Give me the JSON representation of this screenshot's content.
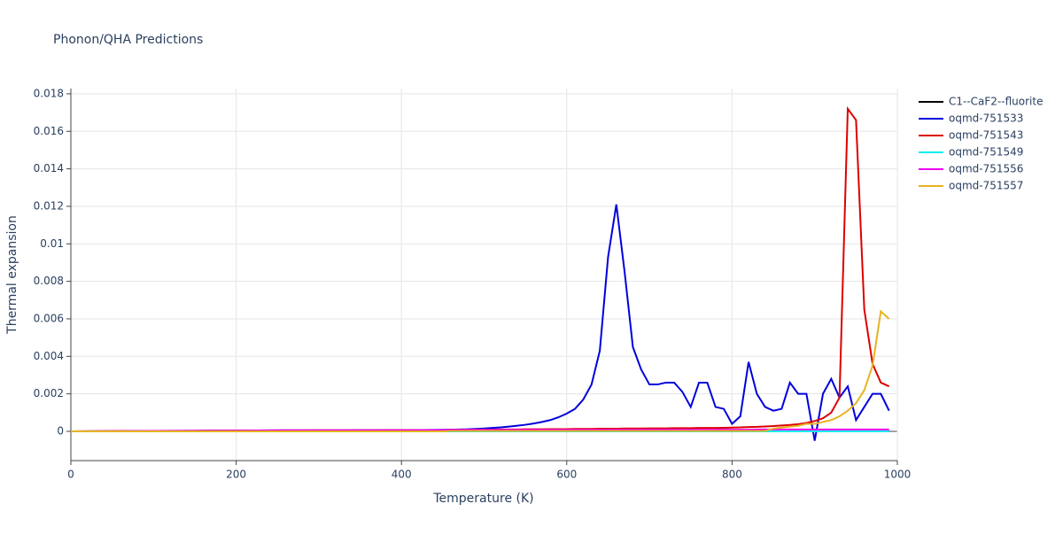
{
  "chart_data": {
    "type": "line",
    "title": "Phonon/QHA Predictions",
    "x_label": "Temperature (K)",
    "y_label": "Thermal expansion",
    "xlim": [
      0,
      1000
    ],
    "xticks": [
      0,
      200,
      400,
      600,
      800,
      1000
    ],
    "ylim": [
      -0.00156,
      0.01828
    ],
    "yticks": [
      0,
      0.002,
      0.004,
      0.006,
      0.008,
      0.01,
      0.012,
      0.014,
      0.016,
      0.018
    ],
    "grid": true,
    "legend": "right",
    "x": [
      0,
      50,
      100,
      150,
      200,
      250,
      300,
      350,
      400,
      450,
      460,
      470,
      480,
      490,
      500,
      510,
      520,
      530,
      540,
      550,
      560,
      570,
      580,
      590,
      600,
      610,
      620,
      630,
      640,
      650,
      660,
      670,
      680,
      690,
      700,
      710,
      720,
      730,
      740,
      750,
      760,
      770,
      780,
      790,
      800,
      810,
      820,
      830,
      840,
      850,
      860,
      870,
      880,
      890,
      900,
      910,
      920,
      930,
      940,
      950,
      960,
      970,
      980,
      990
    ],
    "series": [
      {
        "name": "C1--CaF2--fluorite",
        "color": "#000000",
        "values": [
          0,
          0,
          0,
          0,
          0,
          0,
          0,
          0,
          0,
          0,
          0,
          0,
          0,
          0,
          0,
          0,
          0,
          0,
          0,
          0,
          0,
          0,
          0,
          0,
          0,
          0,
          0,
          0,
          0,
          0,
          0,
          0,
          0,
          0,
          0,
          0,
          0,
          0,
          0,
          0,
          0,
          0,
          0,
          0,
          0,
          0,
          0,
          0,
          0,
          0,
          0,
          0,
          0,
          0,
          0,
          0,
          0,
          0,
          0,
          0,
          0,
          0,
          0,
          0
        ]
      },
      {
        "name": "oqmd-751533",
        "color": "#0000dd",
        "values": [
          0,
          1e-05,
          2e-05,
          3e-05,
          4e-05,
          5e-05,
          5e-05,
          6e-05,
          6e-05,
          8e-05,
          9e-05,
          0.0001,
          0.00011,
          0.00013,
          0.00015,
          0.00018,
          0.00021,
          0.00025,
          0.0003,
          0.00035,
          0.00042,
          0.0005,
          0.0006,
          0.00075,
          0.00095,
          0.0012,
          0.0017,
          0.0025,
          0.0043,
          0.0093,
          0.0121,
          0.0085,
          0.0045,
          0.0033,
          0.0025,
          0.0025,
          0.0026,
          0.0026,
          0.0021,
          0.0013,
          0.0026,
          0.0026,
          0.0013,
          0.0012,
          0.0004,
          0.0008,
          0.0037,
          0.002,
          0.0013,
          0.0011,
          0.0012,
          0.0026,
          0.002,
          0.002,
          -0.0005,
          0.002,
          0.0028,
          0.0018,
          0.0024,
          0.0006,
          0.0013,
          0.002,
          0.002,
          0.0011
        ]
      },
      {
        "name": "oqmd-751543",
        "color": "#dd0000",
        "values": [
          0,
          1e-05,
          2e-05,
          3e-05,
          4e-05,
          5e-05,
          6e-05,
          6e-05,
          7e-05,
          7e-05,
          8e-05,
          8e-05,
          8e-05,
          9e-05,
          9e-05,
          9e-05,
          0.0001,
          0.0001,
          0.0001,
          0.00011,
          0.00011,
          0.00011,
          0.00012,
          0.00012,
          0.00012,
          0.00013,
          0.00013,
          0.00013,
          0.00014,
          0.00014,
          0.00014,
          0.00015,
          0.00015,
          0.00015,
          0.00016,
          0.00016,
          0.00016,
          0.00017,
          0.00017,
          0.00017,
          0.00018,
          0.00018,
          0.00018,
          0.00019,
          0.0002,
          0.00021,
          0.00023,
          0.00024,
          0.00026,
          0.00028,
          0.00031,
          0.00034,
          0.00038,
          0.00045,
          0.00055,
          0.0007,
          0.001,
          0.0018,
          0.0172,
          0.0166,
          0.0065,
          0.0036,
          0.0026,
          0.0024
        ]
      },
      {
        "name": "oqmd-751549",
        "color": "#00eeee",
        "values": [
          0,
          0,
          0,
          0,
          0,
          0,
          0,
          0,
          0,
          0,
          0,
          0,
          0,
          0,
          0,
          0,
          0,
          0,
          0,
          0,
          0,
          0,
          0,
          0,
          0,
          0,
          0,
          0,
          0,
          0,
          0,
          0,
          0,
          0,
          0,
          0,
          0,
          0,
          0,
          0,
          0,
          0,
          0,
          0,
          0,
          0,
          0,
          0,
          0,
          0,
          0,
          0,
          0,
          0,
          0,
          0,
          0,
          0,
          0,
          0,
          0,
          0,
          0,
          0
        ]
      },
      {
        "name": "oqmd-751556",
        "color": "#ee00ee",
        "values": [
          0,
          1e-05,
          2e-05,
          3e-05,
          4e-05,
          5e-05,
          5e-05,
          6e-05,
          6e-05,
          7e-05,
          8e-05,
          8e-05,
          8e-05,
          8e-05,
          8e-05,
          8e-05,
          8e-05,
          8e-05,
          8e-05,
          8e-05,
          8e-05,
          8e-05,
          8e-05,
          8e-05,
          8e-05,
          8e-05,
          8e-05,
          8e-05,
          8e-05,
          8e-05,
          9e-05,
          9e-05,
          9e-05,
          9e-05,
          9e-05,
          9e-05,
          9e-05,
          9e-05,
          9e-05,
          9e-05,
          9e-05,
          9e-05,
          9e-05,
          9e-05,
          9e-05,
          9e-05,
          9e-05,
          0.0001,
          0.0001,
          0.0001,
          0.0001,
          0.0001,
          0.0001,
          0.0001,
          0.0001,
          0.0001,
          0.0001,
          0.0001,
          0.0001,
          0.0001,
          0.0001,
          0.0001,
          0.0001,
          0.0001
        ]
      },
      {
        "name": "oqmd-751557",
        "color": "#e6b422",
        "values": [
          0,
          0,
          0,
          0,
          0,
          0,
          0,
          0,
          0,
          0,
          2e-05,
          2e-05,
          2e-05,
          2e-05,
          2e-05,
          2e-05,
          2e-05,
          2e-05,
          2e-05,
          2e-05,
          2e-05,
          2e-05,
          2e-05,
          2e-05,
          2e-05,
          2e-05,
          2e-05,
          2e-05,
          2e-05,
          2e-05,
          2e-05,
          2e-05,
          2e-05,
          2e-05,
          2e-05,
          2e-05,
          2e-05,
          2e-05,
          2e-05,
          2e-05,
          2e-05,
          2e-05,
          2e-05,
          2e-05,
          2e-05,
          2e-05,
          2e-05,
          2e-05,
          2e-05,
          0.00015,
          0.0002,
          0.00025,
          0.0003,
          0.0004,
          0.0004,
          0.0005,
          0.0006,
          0.0008,
          0.0011,
          0.0015,
          0.0022,
          0.0035,
          0.0064,
          0.006
        ]
      }
    ]
  }
}
